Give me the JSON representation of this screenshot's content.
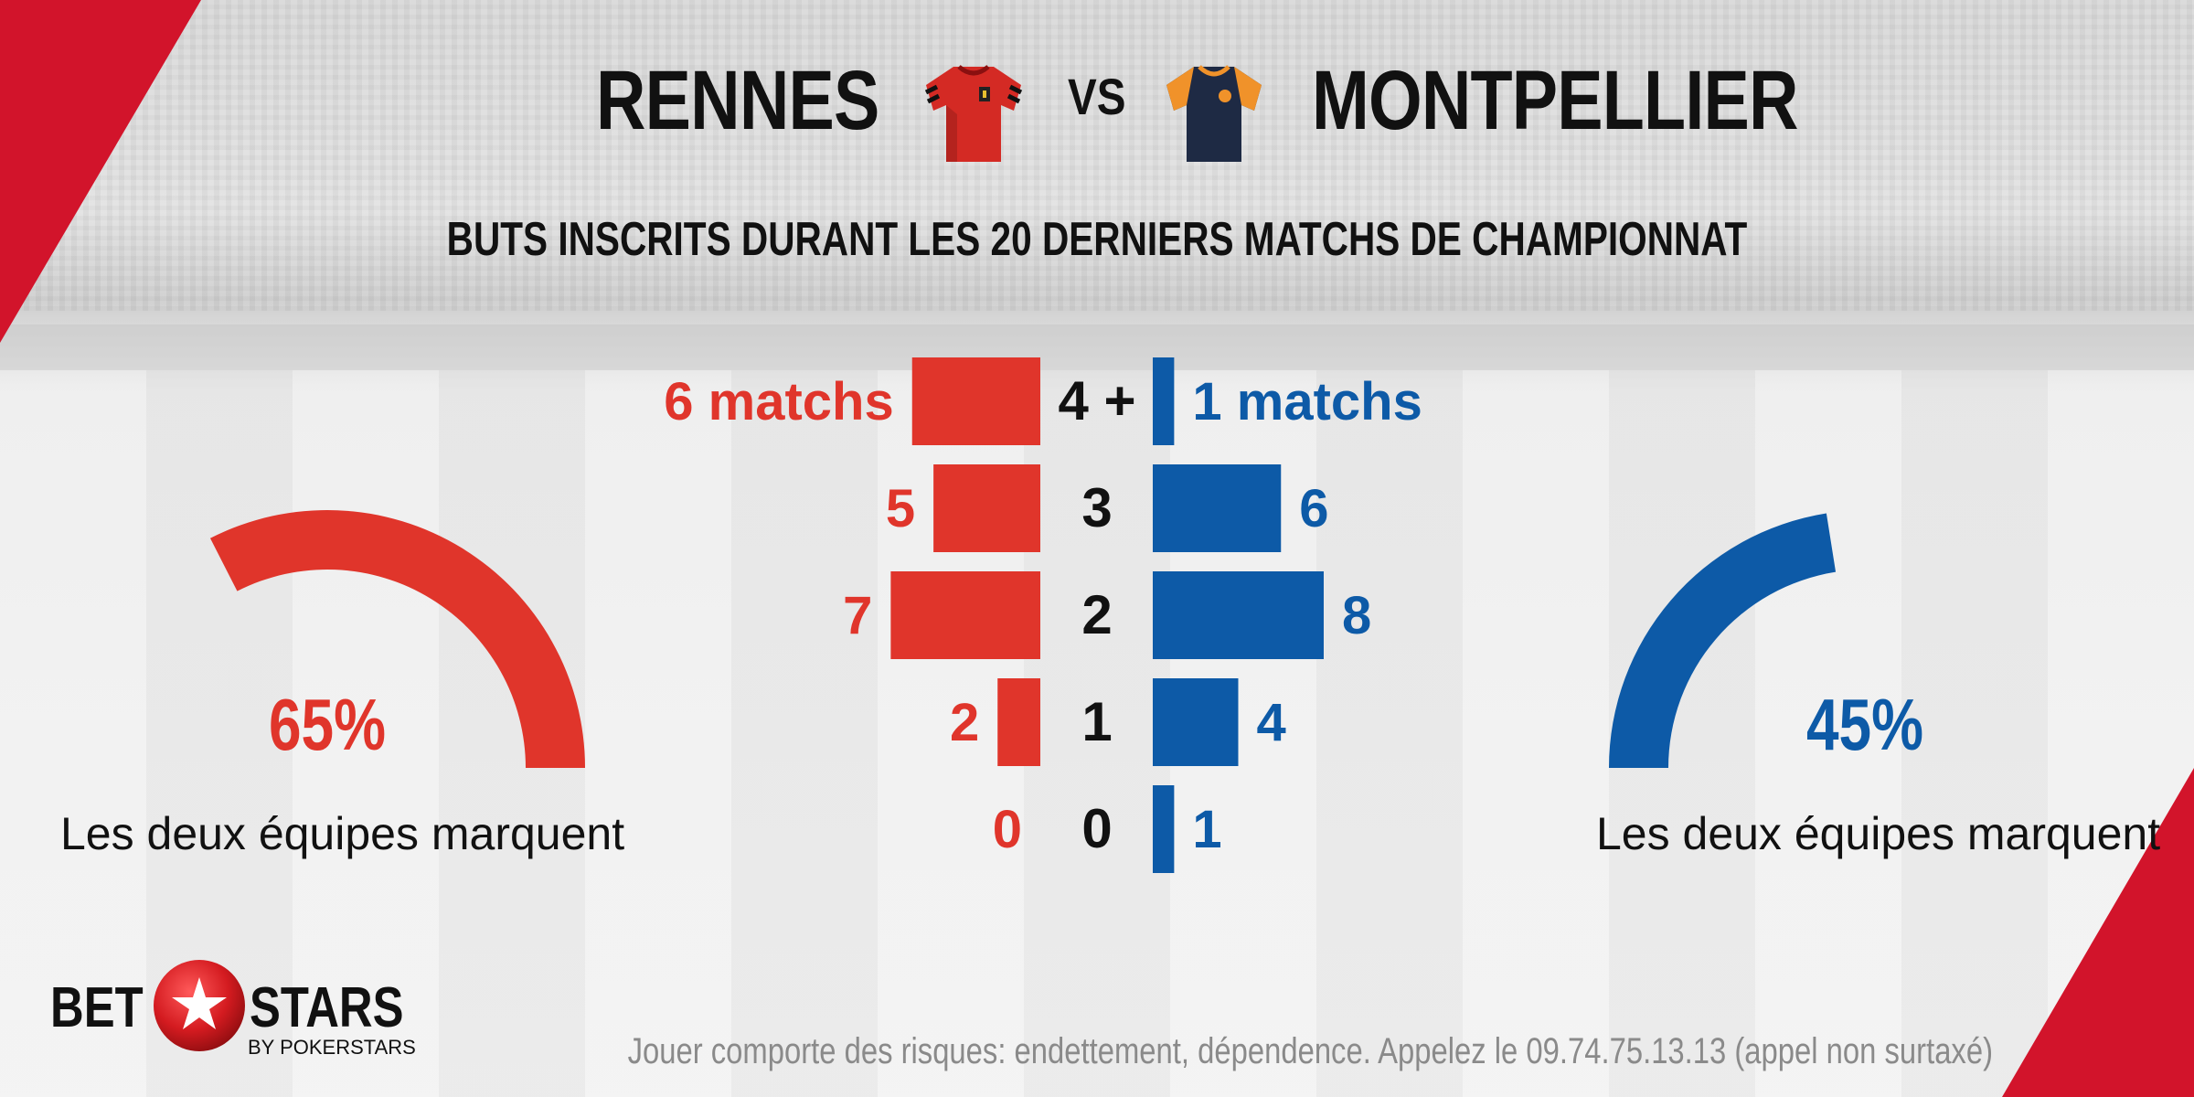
{
  "header": {
    "home_team": "RENNES",
    "vs_label": "VS",
    "away_team": "MONTPELLIER",
    "subtitle": "BUTS INSCRITS DURANT LES 20 DERNIERS MATCHS DE CHAMPIONNAT"
  },
  "colors": {
    "home": "#e0352b",
    "away": "#0d5aa7",
    "accent_red": "#d2142b",
    "away_jersey_trim": "#f0922a",
    "away_jersey_body": "#1e2a44"
  },
  "home_gauge": {
    "percent_label": "65%",
    "value": 0.65,
    "caption": "Les deux équipes marquent"
  },
  "away_gauge": {
    "percent_label": "45%",
    "value": 0.45,
    "caption": "Les deux équipes marquent"
  },
  "chart_data": {
    "type": "bar",
    "orientation": "horizontal-diverging",
    "categories": [
      "4 +",
      "3",
      "2",
      "1",
      "0"
    ],
    "series": [
      {
        "name": "RENNES",
        "values": [
          6,
          5,
          7,
          2,
          0
        ],
        "labels": [
          "6 matchs",
          "5",
          "7",
          "2",
          "0"
        ]
      },
      {
        "name": "MONTPELLIER",
        "values": [
          1,
          6,
          8,
          4,
          1
        ],
        "labels": [
          "1 matchs",
          "6",
          "8",
          "4",
          "1"
        ]
      }
    ],
    "xlim": [
      0,
      8
    ]
  },
  "footer": {
    "logo_bet": "BET",
    "logo_stars": "STARS",
    "logo_sub": "BY POKERSTARS",
    "disclaimer": "Jouer comporte des risques: endettement, dépendence. Appelez le 09.74.75.13.13 (appel non surtaxé)"
  }
}
